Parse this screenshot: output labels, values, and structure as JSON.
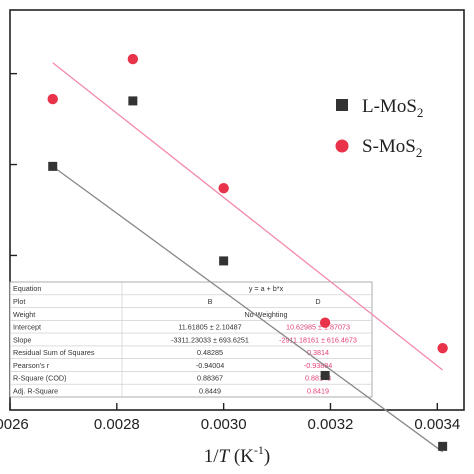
{
  "chart_data": {
    "type": "scatter",
    "xlabel": "1/T (K-1)",
    "xlabel_parts": {
      "one": "1/",
      "T": "T",
      "unit_open": " (K",
      "unit_exp": "-1",
      "unit_close": ")"
    },
    "xlim": [
      0.0026,
      0.00345
    ],
    "ylim": [
      -9.85,
      -7.65
    ],
    "x_ticks": [
      0.0026,
      0.0028,
      0.003,
      0.0032,
      0.0034
    ],
    "x_tick_labels": [
      ".0026",
      "0.0028",
      "0.0030",
      "0.0032",
      "0.0034"
    ],
    "y_ticks": [
      -9.5,
      -9.0,
      -8.5,
      -8.0
    ],
    "series": [
      {
        "name": "L-MoS2",
        "name_main": "L-MoS",
        "name_sub": "2",
        "marker": "square",
        "color": "#333333",
        "x": [
          0.00268,
          0.00283,
          0.003,
          0.00319,
          0.00341
        ],
        "y": [
          -8.51,
          -8.15,
          -9.03,
          -9.66,
          -10.05
        ],
        "fit": {
          "x1": 0.00268,
          "y1": -8.51,
          "x2": 0.00341,
          "y2": -10.08,
          "color": "#888888"
        }
      },
      {
        "name": "S-MoS2",
        "name_main": "S-MoS",
        "name_sub": "2",
        "marker": "circle",
        "color": "#e8334a",
        "x": [
          0.00268,
          0.00283,
          0.003,
          0.00319,
          0.00341
        ],
        "y": [
          -8.14,
          -7.92,
          -8.63,
          -9.37,
          -9.51
        ],
        "fit": {
          "x1": 0.00268,
          "y1": -7.94,
          "x2": 0.00341,
          "y2": -9.63,
          "color": "#f28aa8"
        }
      }
    ],
    "legend_position": "right",
    "fit_table": {
      "rows": [
        [
          "Equation",
          "y = a + b*x",
          ""
        ],
        [
          "Plot",
          "B",
          "D"
        ],
        [
          "Weight",
          "No Weighting",
          ""
        ],
        [
          "Intercept",
          "11.61805 ± 2.10487",
          "10.62985 ± 1.87073"
        ],
        [
          "Slope",
          "-3311.23033 ± 693.6251",
          "-2911.18161 ± 616.4673"
        ],
        [
          "Residual Sum of Squares",
          "0.48285",
          "0.3814"
        ],
        [
          "Pearson's r",
          "-0.94004",
          "-0.93884"
        ],
        [
          "R-Square (COD)",
          "0.88367",
          "0.88143"
        ],
        [
          "Adj. R-Square",
          "0.8449",
          "0.8419"
        ]
      ],
      "highlight_color": "#e0407a"
    }
  }
}
